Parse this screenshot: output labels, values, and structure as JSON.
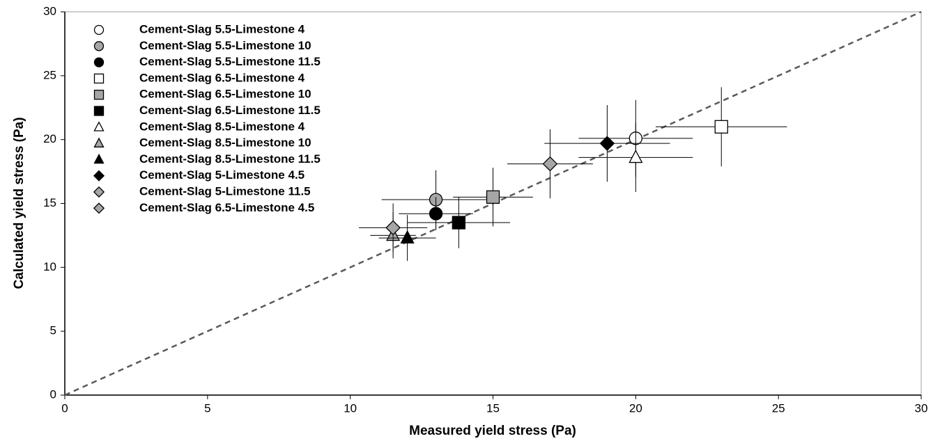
{
  "chart_data": {
    "type": "scatter",
    "x_label": "Measured yield stress (Pa)",
    "y_label": "Calculated yield stress (Pa)",
    "xlim": [
      0,
      30
    ],
    "ylim": [
      0,
      30
    ],
    "xticks": [
      0,
      5,
      10,
      15,
      20,
      25,
      30
    ],
    "yticks": [
      0,
      5,
      10,
      15,
      20,
      25,
      30
    ],
    "diagonal": true,
    "legend": "upper left",
    "series": [
      {
        "name": "Cement-Slag 5.5-Limestone 4",
        "marker": "circle",
        "color": "#ffffff",
        "x": [
          20
        ],
        "values": [
          20.1
        ],
        "xerr": [
          2
        ],
        "yerr": [
          3
        ]
      },
      {
        "name": "Cement-Slag 5.5-Limestone 10",
        "marker": "circle",
        "color": "#a6a6a6",
        "x": [
          13
        ],
        "values": [
          15.3
        ],
        "xerr": [
          1.9
        ],
        "yerr": [
          2.3
        ]
      },
      {
        "name": "Cement-Slag 5.5-Limestone 11.5",
        "marker": "circle",
        "color": "#000000",
        "x": [
          13
        ],
        "values": [
          14.2
        ],
        "xerr": [
          1.3
        ],
        "yerr": [
          1.3
        ]
      },
      {
        "name": "Cement-Slag 6.5-Limestone 4",
        "marker": "square",
        "color": "#ffffff",
        "x": [
          23
        ],
        "values": [
          21
        ],
        "xerr": [
          2.3
        ],
        "yerr": [
          3.1
        ]
      },
      {
        "name": "Cement-Slag 6.5-Limestone 10",
        "marker": "square",
        "color": "#a6a6a6",
        "x": [
          15
        ],
        "values": [
          15.5
        ],
        "xerr": [
          1.4
        ],
        "yerr": [
          2.3
        ]
      },
      {
        "name": "Cement-Slag 6.5-Limestone 11.5",
        "marker": "square",
        "color": "#000000",
        "x": [
          13.8
        ],
        "values": [
          13.5
        ],
        "xerr": [
          1.8
        ],
        "yerr": [
          2
        ]
      },
      {
        "name": "Cement-Slag 8.5-Limestone 4",
        "marker": "triangle",
        "color": "#ffffff",
        "x": [
          20
        ],
        "values": [
          18.6
        ],
        "xerr": [
          2
        ],
        "yerr": [
          2.7
        ]
      },
      {
        "name": "Cement-Slag 8.5-Limestone 10",
        "marker": "triangle",
        "color": "#a6a6a6",
        "x": [
          11.5
        ],
        "values": [
          12.5
        ],
        "xerr": [
          0.8
        ],
        "yerr": [
          1.8
        ]
      },
      {
        "name": "Cement-Slag 8.5-Limestone 11.5",
        "marker": "triangle",
        "color": "#000000",
        "x": [
          12
        ],
        "values": [
          12.3
        ],
        "xerr": [
          1
        ],
        "yerr": [
          1.8
        ]
      },
      {
        "name": "Cement-Slag 5-Limestone 4.5",
        "marker": "diamond",
        "color": "#000000",
        "x": [
          19
        ],
        "values": [
          19.7
        ],
        "xerr": [
          2.2
        ],
        "yerr": [
          3
        ]
      },
      {
        "name": "Cement-Slag 5-Limestone 11.5",
        "marker": "diamond",
        "color": "#a6a6a6",
        "x": [
          17
        ],
        "values": [
          18.1
        ],
        "xerr": [
          1.5
        ],
        "yerr": [
          2.7
        ]
      },
      {
        "name": "Cement-Slag 6.5-Limestone 4.5",
        "marker": "diamond",
        "color": "#a6a6a6",
        "x": [
          11.5
        ],
        "values": [
          13.1
        ],
        "xerr": [
          1.2
        ],
        "yerr": [
          1.9
        ]
      }
    ]
  }
}
